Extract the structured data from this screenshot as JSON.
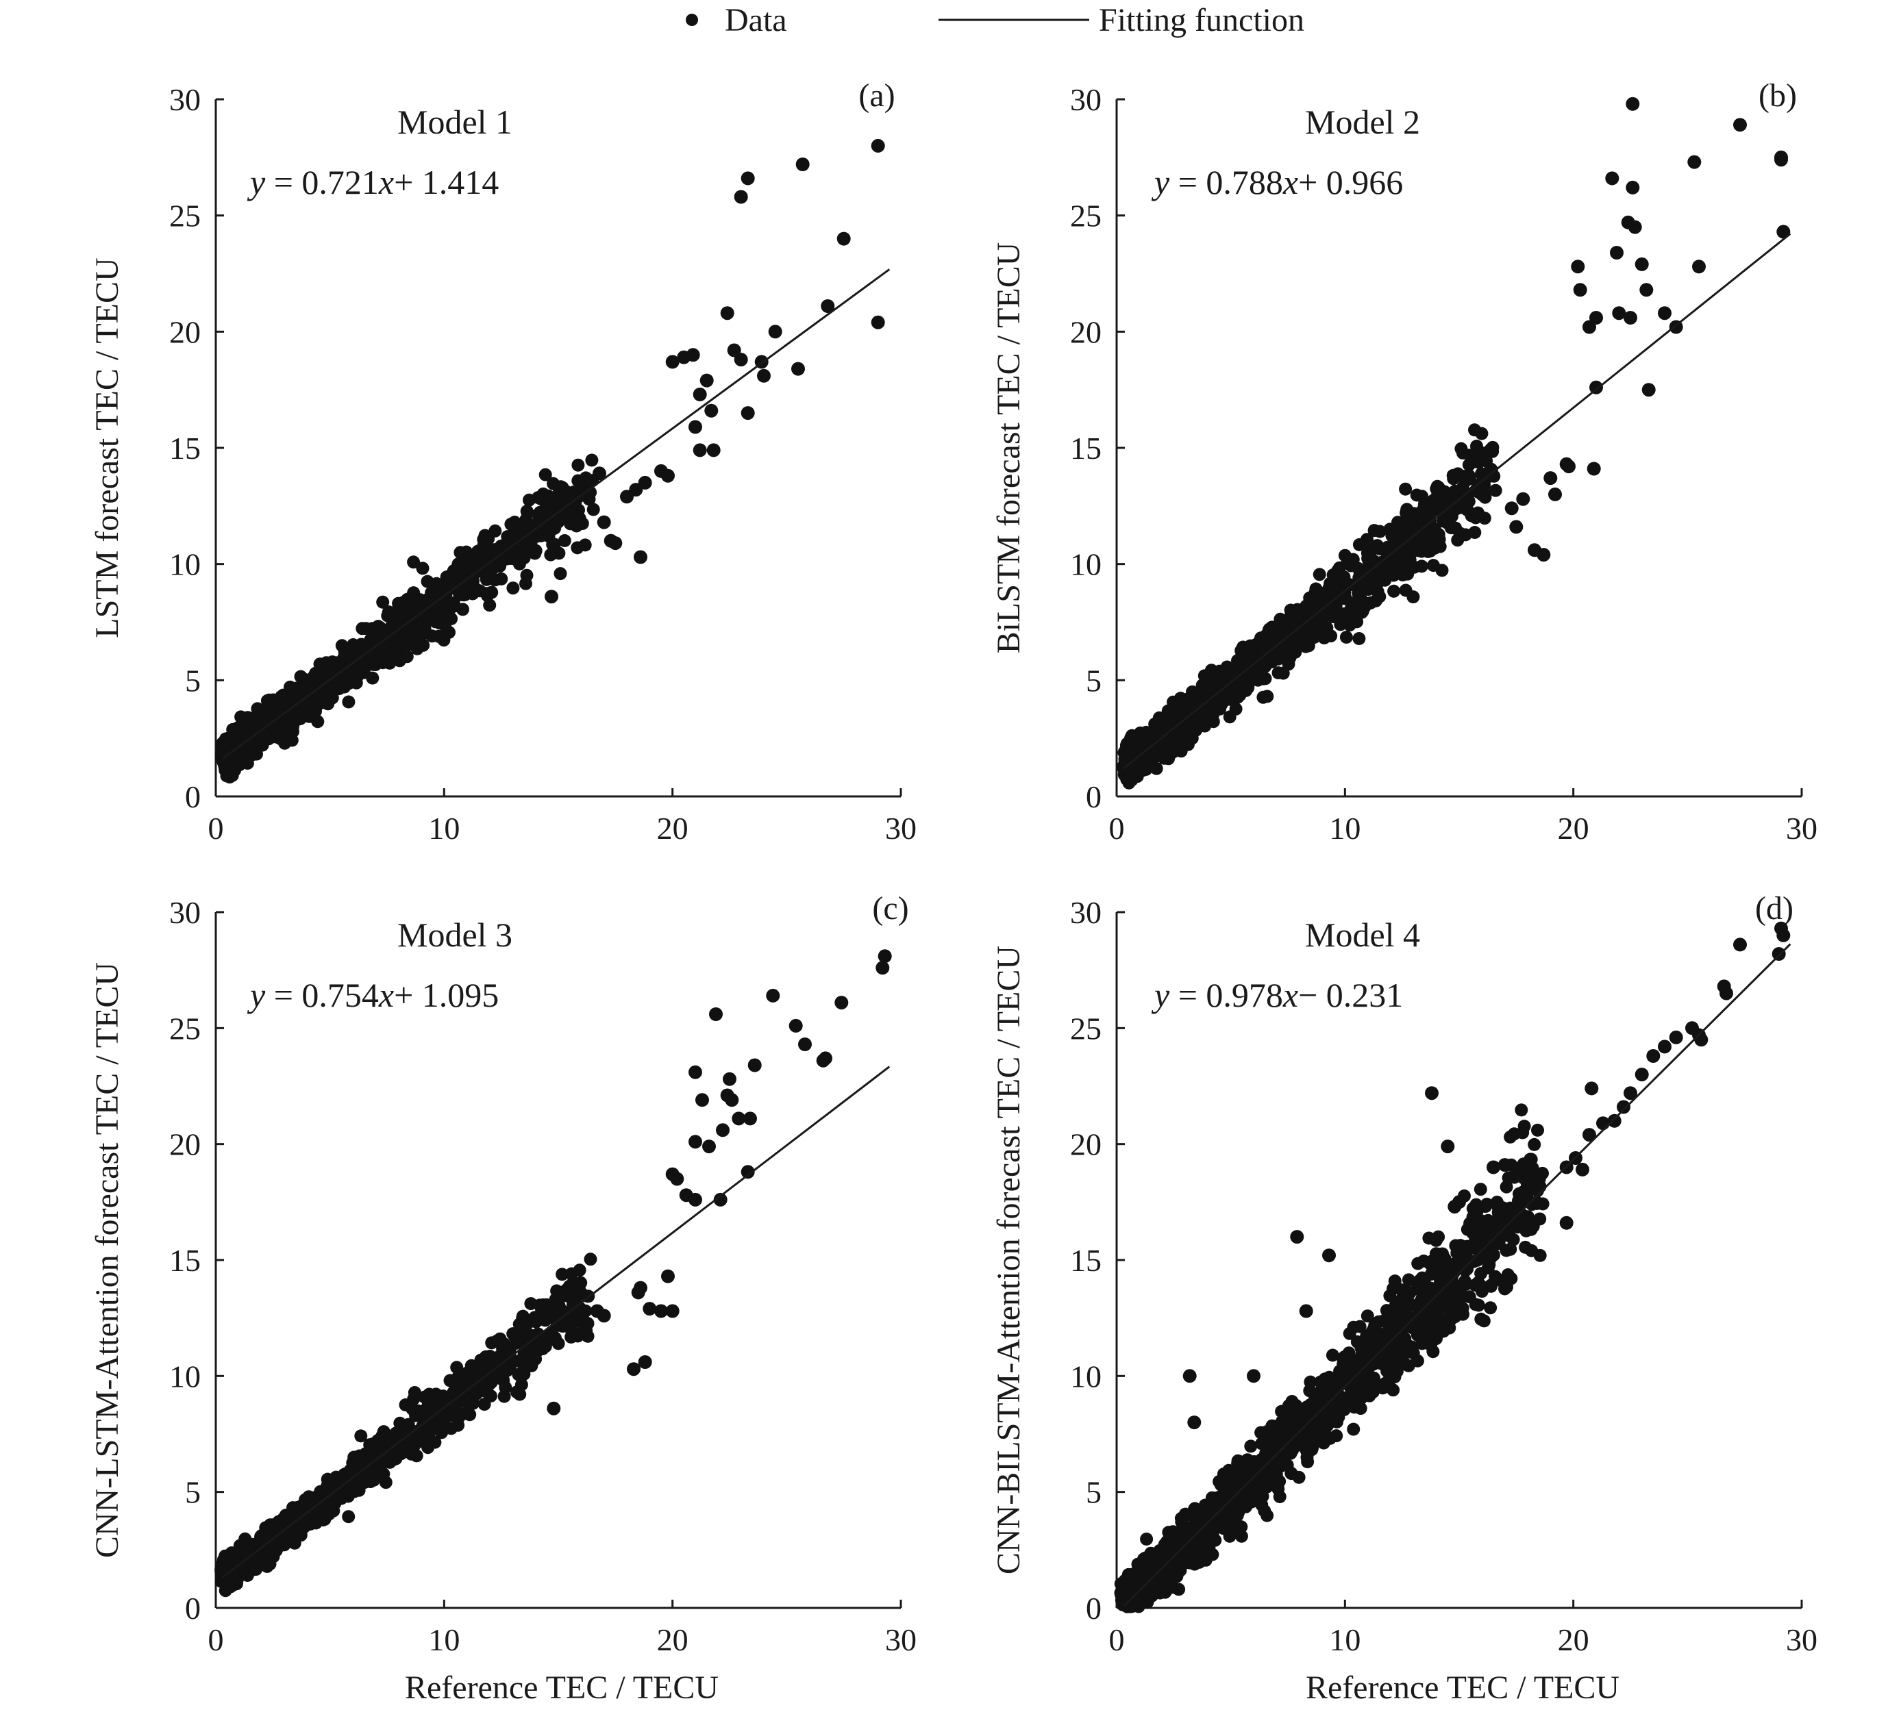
{
  "legend": {
    "data_label": "Data",
    "fit_label": "Fitting function"
  },
  "colors": {
    "ink": "#111111",
    "background": "#ffffff"
  },
  "chart_data": [
    {
      "type": "scatter",
      "panel": "(a)",
      "title": "Model 1",
      "equation": {
        "y": "y",
        "eq": " = 0.721",
        "x": "x",
        "rest": "+ 1.414"
      },
      "fit": {
        "slope": 0.721,
        "intercept": 1.414
      },
      "xlabel": "",
      "ylabel": "LSTM  forecast TEC / TECU",
      "xlim": [
        0,
        30
      ],
      "ylim": [
        0,
        30
      ],
      "xticks": [
        "0",
        "10",
        "20",
        "30"
      ],
      "yticks": [
        "0",
        "5",
        "10",
        "15",
        "20",
        "25",
        "30"
      ],
      "cluster": {
        "count": 1300,
        "ref_min": 0.5,
        "ref_max": 16.5,
        "spread": 0.55,
        "concentration": 2.3
      },
      "points": [
        [
          20.0,
          18.7
        ],
        [
          20.5,
          18.9
        ],
        [
          20.9,
          19.0
        ],
        [
          21.2,
          17.3
        ],
        [
          21.5,
          17.9
        ],
        [
          21.7,
          16.6
        ],
        [
          21.0,
          15.9
        ],
        [
          21.8,
          14.9
        ],
        [
          21.2,
          14.9
        ],
        [
          23.0,
          18.8
        ],
        [
          22.7,
          19.2
        ],
        [
          23.3,
          16.5
        ],
        [
          23.9,
          18.7
        ],
        [
          24.0,
          18.1
        ],
        [
          24.5,
          20.0
        ],
        [
          25.5,
          18.4
        ],
        [
          22.4,
          20.8
        ],
        [
          23.0,
          25.8
        ],
        [
          23.3,
          26.6
        ],
        [
          25.7,
          27.2
        ],
        [
          27.5,
          24.0
        ],
        [
          26.8,
          21.1
        ],
        [
          29.0,
          28.0
        ],
        [
          29.0,
          20.4
        ],
        [
          17.3,
          11.0
        ],
        [
          18.4,
          13.2
        ],
        [
          18.0,
          12.9
        ],
        [
          18.8,
          13.5
        ],
        [
          19.5,
          14.0
        ],
        [
          19.8,
          13.8
        ],
        [
          17.5,
          10.9
        ],
        [
          18.6,
          10.3
        ],
        [
          17.0,
          11.8
        ],
        [
          14.7,
          8.6
        ],
        [
          15.5,
          12.8
        ],
        [
          16.2,
          13.5
        ],
        [
          16.8,
          13.9
        ]
      ]
    },
    {
      "type": "scatter",
      "panel": "(b)",
      "title": "Model 2",
      "equation": {
        "y": "y",
        "eq": " = 0.788",
        "x": "x",
        "rest": "+ 0.966"
      },
      "fit": {
        "slope": 0.788,
        "intercept": 0.966
      },
      "xlabel": "",
      "ylabel": "BiLSTM forecast TEC / TECU",
      "xlim": [
        0,
        30
      ],
      "ylim": [
        0,
        30
      ],
      "xticks": [
        "0",
        "10",
        "20",
        "30"
      ],
      "yticks": [
        "0",
        "5",
        "10",
        "15",
        "20",
        "25",
        "30"
      ],
      "cluster": {
        "count": 1300,
        "ref_min": 0.5,
        "ref_max": 16.5,
        "spread": 0.6,
        "concentration": 2.3
      },
      "points": [
        [
          22.6,
          29.8
        ],
        [
          22.6,
          26.2
        ],
        [
          21.7,
          26.6
        ],
        [
          22.4,
          24.7
        ],
        [
          22.7,
          24.5
        ],
        [
          21.9,
          23.4
        ],
        [
          20.2,
          22.8
        ],
        [
          21.0,
          20.6
        ],
        [
          20.7,
          20.2
        ],
        [
          20.3,
          21.8
        ],
        [
          22.0,
          20.8
        ],
        [
          22.5,
          20.6
        ],
        [
          23.2,
          21.8
        ],
        [
          23.0,
          22.9
        ],
        [
          24.0,
          20.8
        ],
        [
          24.5,
          20.2
        ],
        [
          25.5,
          22.8
        ],
        [
          25.3,
          27.3
        ],
        [
          27.3,
          28.9
        ],
        [
          29.1,
          27.5
        ],
        [
          29.1,
          27.4
        ],
        [
          29.2,
          24.3
        ],
        [
          23.3,
          17.5
        ],
        [
          21.0,
          17.6
        ],
        [
          20.9,
          14.1
        ],
        [
          18.3,
          10.6
        ],
        [
          18.7,
          10.4
        ],
        [
          19.7,
          14.3
        ],
        [
          19.8,
          14.2
        ],
        [
          19.2,
          13.0
        ],
        [
          19.0,
          13.7
        ],
        [
          17.8,
          12.8
        ],
        [
          17.5,
          11.6
        ],
        [
          17.3,
          12.4
        ],
        [
          16.1,
          14.7
        ]
      ]
    },
    {
      "type": "scatter",
      "panel": "(c)",
      "title": "Model 3",
      "equation": {
        "y": "y",
        "eq": " = 0.754",
        "x": "x",
        "rest": "+ 1.095"
      },
      "fit": {
        "slope": 0.754,
        "intercept": 1.095
      },
      "xlabel": "Reference TEC / TECU",
      "ylabel": "CNN-LSTM-Attention  forecast TEC / TECU",
      "xlim": [
        0,
        30
      ],
      "ylim": [
        0,
        30
      ],
      "xticks": [
        "0",
        "10",
        "20",
        "30"
      ],
      "yticks": [
        "0",
        "5",
        "10",
        "15",
        "20",
        "25",
        "30"
      ],
      "cluster": {
        "count": 1300,
        "ref_min": 0.5,
        "ref_max": 16.5,
        "spread": 0.45,
        "concentration": 2.3
      },
      "points": [
        [
          21.9,
          25.6
        ],
        [
          24.4,
          26.4
        ],
        [
          25.4,
          25.1
        ],
        [
          26.7,
          23.7
        ],
        [
          26.6,
          23.6
        ],
        [
          27.4,
          26.1
        ],
        [
          29.2,
          27.6
        ],
        [
          29.3,
          28.1
        ],
        [
          21.0,
          23.1
        ],
        [
          21.3,
          21.9
        ],
        [
          22.5,
          22.8
        ],
        [
          22.4,
          22.1
        ],
        [
          22.6,
          21.9
        ],
        [
          22.9,
          21.1
        ],
        [
          23.4,
          21.1
        ],
        [
          23.6,
          23.4
        ],
        [
          25.8,
          24.3
        ],
        [
          21.0,
          20.1
        ],
        [
          21.6,
          19.9
        ],
        [
          22.2,
          20.6
        ],
        [
          20.0,
          18.7
        ],
        [
          20.2,
          18.5
        ],
        [
          20.6,
          17.8
        ],
        [
          21.0,
          17.6
        ],
        [
          22.1,
          17.6
        ],
        [
          23.3,
          18.8
        ],
        [
          19.5,
          12.8
        ],
        [
          19.8,
          14.3
        ],
        [
          20.0,
          12.8
        ],
        [
          18.5,
          13.6
        ],
        [
          18.6,
          13.8
        ],
        [
          19.0,
          12.9
        ],
        [
          18.8,
          10.6
        ],
        [
          18.3,
          10.3
        ],
        [
          16.7,
          12.8
        ],
        [
          17.0,
          12.6
        ],
        [
          14.8,
          8.6
        ]
      ]
    },
    {
      "type": "scatter",
      "panel": "(d)",
      "title": "Model 4",
      "equation": {
        "y": "y",
        "eq": " = 0.978",
        "x": "x",
        "rest": "− 0.231"
      },
      "fit": {
        "slope": 0.978,
        "intercept": -0.231
      },
      "xlabel": "Reference TEC / TECU",
      "ylabel": "CNN-BILSTM-Attention  forecast TEC / TECU",
      "xlim": [
        0,
        30
      ],
      "ylim": [
        0,
        30
      ],
      "xticks": [
        "0",
        "10",
        "20",
        "30"
      ],
      "yticks": [
        "0",
        "5",
        "10",
        "15",
        "20",
        "25",
        "30"
      ],
      "cluster": {
        "count": 1450,
        "ref_min": 0.5,
        "ref_max": 18.5,
        "spread": 0.75,
        "concentration": 1.9
      },
      "points": [
        [
          13.8,
          22.2
        ],
        [
          14.5,
          19.9
        ],
        [
          7.9,
          16.0
        ],
        [
          9.3,
          15.2
        ],
        [
          3.2,
          10.0
        ],
        [
          6.0,
          10.0
        ],
        [
          3.4,
          8.0
        ],
        [
          8.3,
          12.8
        ],
        [
          14.8,
          17.3
        ],
        [
          15.0,
          17.5
        ],
        [
          16.5,
          19.0
        ],
        [
          17.0,
          19.1
        ],
        [
          19.7,
          16.6
        ],
        [
          19.7,
          19.0
        ],
        [
          20.1,
          19.4
        ],
        [
          20.4,
          18.9
        ],
        [
          20.8,
          22.4
        ],
        [
          20.7,
          20.4
        ],
        [
          21.3,
          20.9
        ],
        [
          21.8,
          21.0
        ],
        [
          22.2,
          21.6
        ],
        [
          22.5,
          22.2
        ],
        [
          23.0,
          23.0
        ],
        [
          23.5,
          23.8
        ],
        [
          24.0,
          24.2
        ],
        [
          24.5,
          24.6
        ],
        [
          25.2,
          25.0
        ],
        [
          25.5,
          24.7
        ],
        [
          25.6,
          24.5
        ],
        [
          26.6,
          26.8
        ],
        [
          26.7,
          26.5
        ],
        [
          27.3,
          28.6
        ],
        [
          29.0,
          28.2
        ],
        [
          29.1,
          29.3
        ],
        [
          29.2,
          29.0
        ],
        [
          18.0,
          18.4
        ],
        [
          18.5,
          18.5
        ]
      ]
    }
  ]
}
